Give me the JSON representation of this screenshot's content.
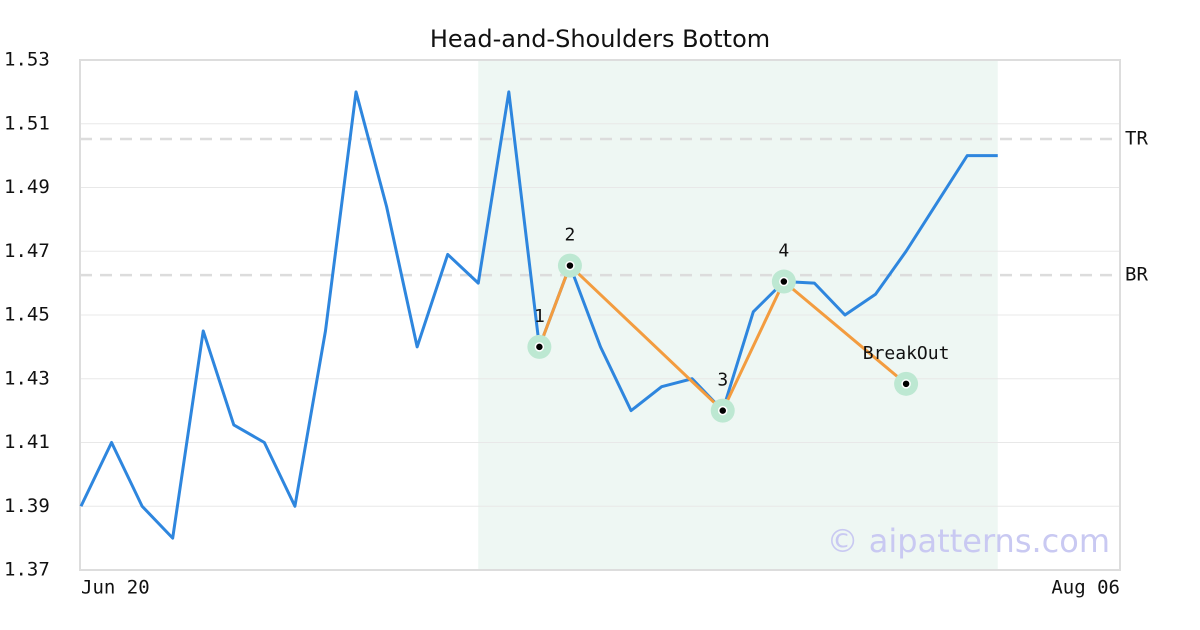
{
  "chart_data": {
    "type": "line",
    "title": "Head-and-Shoulders Bottom",
    "categories": [
      "Jun 20",
      null,
      null,
      null,
      null,
      null,
      null,
      null,
      null,
      null,
      null,
      null,
      null,
      null,
      null,
      null,
      null,
      null,
      null,
      null,
      null,
      null,
      null,
      null,
      null,
      null,
      null,
      null,
      null,
      null,
      null,
      null,
      null,
      null,
      "Aug 06"
    ],
    "series": [
      {
        "color": "#2e86de",
        "values": [
          1.39,
          1.41,
          1.39,
          1.38,
          1.445,
          1.4155,
          1.41,
          1.39,
          1.445,
          1.52,
          1.484,
          1.44,
          1.469,
          1.46,
          1.52,
          1.44,
          1.4655,
          1.44,
          1.42,
          1.4275,
          1.43,
          1.42,
          1.451,
          1.4605,
          1.46,
          1.45,
          1.4565,
          1.47,
          1.485,
          1.5,
          1.5,
          null,
          null,
          null,
          null
        ]
      }
    ],
    "pattern": {
      "color": "#f39c3f",
      "x": [
        15,
        16,
        21,
        23,
        27
      ],
      "values": [
        1.44,
        1.4655,
        1.42,
        1.4605,
        1.4284
      ],
      "labels": [
        "1",
        "2",
        "3",
        "4",
        "BreakOut"
      ]
    },
    "levels": [
      {
        "label": "TR",
        "value": 1.5052
      },
      {
        "label": "BR",
        "value": 1.4625
      }
    ],
    "highlight": [
      13,
      30
    ],
    "ylim": [
      1.37,
      1.53
    ],
    "yticks": [
      1.37,
      1.39,
      1.41,
      1.43,
      1.45,
      1.47,
      1.49,
      1.51,
      1.53
    ],
    "grid": true,
    "watermark": "© aipatterns.com"
  }
}
